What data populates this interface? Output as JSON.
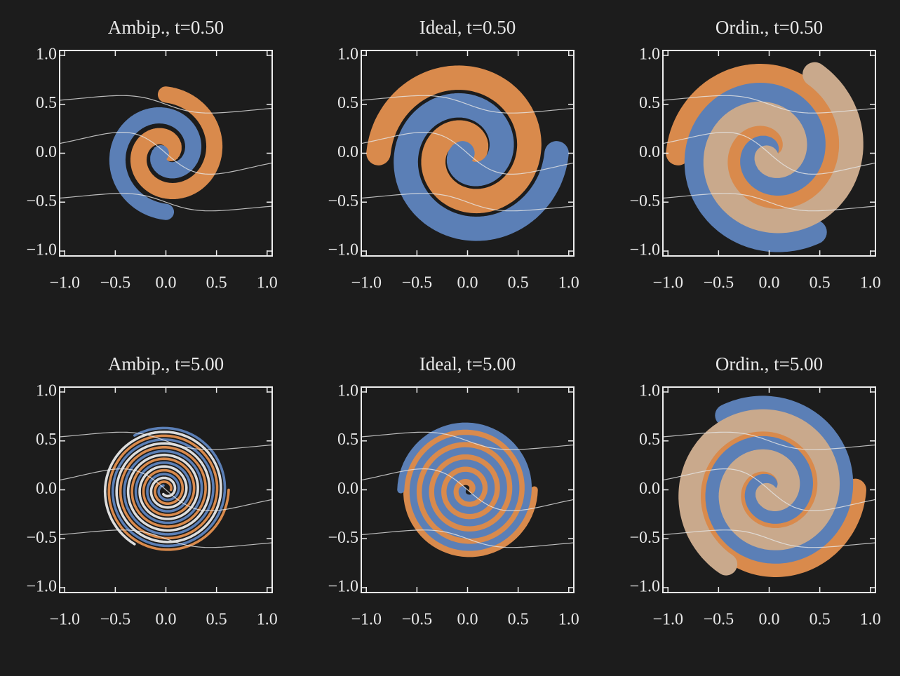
{
  "chart_data": [
    {
      "type": "image",
      "title": "Ambip., t=0.50",
      "xlim": [
        -1.05,
        1.05
      ],
      "ylim": [
        -1.05,
        1.05
      ],
      "xticks": [
        {
          "value": -1.0,
          "label": "−1.0"
        },
        {
          "value": -0.5,
          "label": "−0.5"
        },
        {
          "value": 0.0,
          "label": "0.0"
        },
        0.5,
        {
          "value": 1.0,
          "label": "1.0"
        }
      ],
      "yticks": [
        {
          "value": -1.0,
          "label": "−1.0"
        },
        {
          "value": -0.5,
          "label": "−0.5"
        },
        {
          "value": 0.0,
          "label": "0.0"
        },
        0.5,
        {
          "value": 1.0,
          "label": "1.0"
        }
      ]
    },
    {
      "type": "image",
      "title": "Ideal, t=0.50",
      "xlim": [
        -1.05,
        1.05
      ],
      "ylim": [
        -1.05,
        1.05
      ],
      "xticks": [
        {
          "value": -1.0,
          "label": "−1.0"
        },
        {
          "value": -0.5,
          "label": "−0.5"
        },
        {
          "value": 0.0,
          "label": "0.0"
        },
        0.5,
        {
          "value": 1.0,
          "label": "1.0"
        }
      ],
      "yticks": [
        {
          "value": -1.0,
          "label": "−1.0"
        },
        {
          "value": -0.5,
          "label": "−0.5"
        },
        {
          "value": 0.0,
          "label": "0.0"
        },
        0.5,
        {
          "value": 1.0,
          "label": "1.0"
        }
      ]
    },
    {
      "type": "image",
      "title": "Ordin., t=0.50",
      "xlim": [
        -1.05,
        1.05
      ],
      "ylim": [
        -1.05,
        1.05
      ],
      "xticks": [
        {
          "value": -1.0,
          "label": "−1.0"
        },
        {
          "value": -0.5,
          "label": "−0.5"
        },
        {
          "value": 0.0,
          "label": "0.0"
        },
        0.5,
        {
          "value": 1.0,
          "label": "1.0"
        }
      ],
      "yticks": [
        {
          "value": -1.0,
          "label": "−1.0"
        },
        {
          "value": -0.5,
          "label": "−0.5"
        },
        {
          "value": 0.0,
          "label": "0.0"
        },
        0.5,
        {
          "value": 1.0,
          "label": "1.0"
        }
      ]
    },
    {
      "type": "image",
      "title": "Ambip., t=5.00",
      "xlim": [
        -1.05,
        1.05
      ],
      "ylim": [
        -1.05,
        1.05
      ],
      "xticks": [
        {
          "value": -1.0,
          "label": "−1.0"
        },
        {
          "value": -0.5,
          "label": "−0.5"
        },
        {
          "value": 0.0,
          "label": "0.0"
        },
        0.5,
        {
          "value": 1.0,
          "label": "1.0"
        }
      ],
      "yticks": [
        {
          "value": -1.0,
          "label": "−1.0"
        },
        {
          "value": -0.5,
          "label": "−0.5"
        },
        {
          "value": 0.0,
          "label": "0.0"
        },
        0.5,
        {
          "value": 1.0,
          "label": "1.0"
        }
      ]
    },
    {
      "type": "image",
      "title": "Ideal, t=5.00",
      "xlim": [
        -1.05,
        1.05
      ],
      "ylim": [
        -1.05,
        1.05
      ],
      "xticks": [
        {
          "value": -1.0,
          "label": "−1.0"
        },
        {
          "value": -0.5,
          "label": "−0.5"
        },
        {
          "value": 0.0,
          "label": "0.0"
        },
        0.5,
        {
          "value": 1.0,
          "label": "1.0"
        }
      ],
      "yticks": [
        {
          "value": -1.0,
          "label": "−1.0"
        },
        {
          "value": -0.5,
          "label": "−0.5"
        },
        {
          "value": 0.0,
          "label": "0.0"
        },
        0.5,
        {
          "value": 1.0,
          "label": "1.0"
        }
      ]
    },
    {
      "type": "image",
      "title": "Ordin., t=5.00",
      "xlim": [
        -1.05,
        1.05
      ],
      "ylim": [
        -1.05,
        1.05
      ],
      "xticks": [
        {
          "value": -1.0,
          "label": "−1.0"
        },
        {
          "value": -0.5,
          "label": "−0.5"
        },
        {
          "value": 0.0,
          "label": "0.0"
        },
        0.5,
        {
          "value": 1.0,
          "label": "1.0"
        }
      ],
      "yticks": [
        {
          "value": -1.0,
          "label": "−1.0"
        },
        {
          "value": -0.5,
          "label": "−0.5"
        },
        {
          "value": 0.0,
          "label": "0.0"
        },
        0.5,
        {
          "value": 1.0,
          "label": "1.0"
        }
      ]
    }
  ]
}
